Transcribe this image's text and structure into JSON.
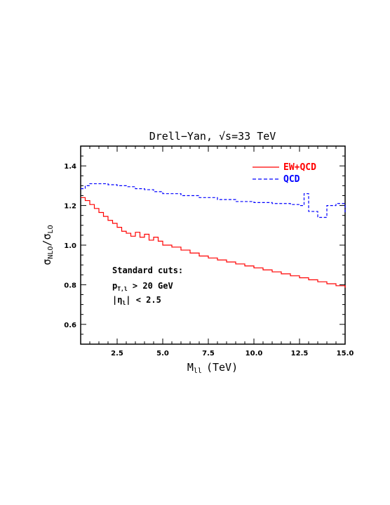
{
  "chart_data": {
    "type": "line",
    "title": "Drell−Yan, √s=33 TeV",
    "xlabel": "M",
    "xlabel_sub": "ll",
    "xlabel_unit": "(TeV)",
    "ylabel": "σ",
    "ylabel_sub1": "NLO",
    "ylabel_mid": "/σ",
    "ylabel_sub2": "LO",
    "xlim": [
      0.5,
      15.0
    ],
    "ylim": [
      0.5,
      1.5
    ],
    "xticks": [
      2.5,
      5.0,
      7.5,
      10.0,
      12.5,
      15.0
    ],
    "xtick_labels": [
      "2.5",
      "5.0",
      "7.5",
      "10.0",
      "12.5",
      "15.0"
    ],
    "yticks": [
      0.6,
      0.8,
      1.0,
      1.2,
      1.4
    ],
    "ytick_labels": [
      "0.6",
      "0.8",
      "1.0",
      "1.2",
      "1.4"
    ],
    "legend": {
      "position": "top-right",
      "entries": [
        "EW+QCD",
        "QCD"
      ]
    },
    "annotation": {
      "line1": "Standard cuts:",
      "line2_p": "p",
      "line2_sub": "T,l",
      "line2_rest": " > 20 GeV",
      "line3_open": "|η",
      "line3_sub": "l",
      "line3_rest": "| < 2.5"
    },
    "series": [
      {
        "name": "EW+QCD",
        "color": "#ff0000",
        "style": "solid",
        "x": [
          0.5,
          0.75,
          1.0,
          1.25,
          1.5,
          1.75,
          2.0,
          2.25,
          2.5,
          2.75,
          3.0,
          3.25,
          3.5,
          3.75,
          4.0,
          4.25,
          4.5,
          4.75,
          5.0,
          5.5,
          6.0,
          6.5,
          7.0,
          7.5,
          8.0,
          8.5,
          9.0,
          9.5,
          10.0,
          10.5,
          11.0,
          11.5,
          12.0,
          12.5,
          13.0,
          13.5,
          14.0,
          14.5,
          15.0
        ],
        "y": [
          1.24,
          1.225,
          1.205,
          1.185,
          1.165,
          1.145,
          1.125,
          1.11,
          1.09,
          1.07,
          1.06,
          1.045,
          1.065,
          1.04,
          1.055,
          1.025,
          1.04,
          1.02,
          1.0,
          0.99,
          0.975,
          0.96,
          0.945,
          0.935,
          0.925,
          0.915,
          0.905,
          0.895,
          0.885,
          0.875,
          0.865,
          0.855,
          0.845,
          0.835,
          0.825,
          0.815,
          0.805,
          0.795,
          0.785
        ]
      },
      {
        "name": "QCD",
        "color": "#0000ff",
        "style": "dashed",
        "x": [
          0.5,
          0.75,
          1.0,
          1.5,
          2.0,
          2.5,
          3.0,
          3.5,
          4.0,
          4.5,
          5.0,
          6.0,
          7.0,
          8.0,
          9.0,
          10.0,
          11.0,
          12.0,
          12.5,
          12.75,
          13.0,
          13.5,
          14.0,
          14.5,
          15.0
        ],
        "y": [
          1.285,
          1.3,
          1.31,
          1.31,
          1.305,
          1.3,
          1.295,
          1.285,
          1.28,
          1.27,
          1.26,
          1.25,
          1.24,
          1.23,
          1.22,
          1.215,
          1.21,
          1.205,
          1.2,
          1.26,
          1.17,
          1.14,
          1.2,
          1.21,
          1.16
        ]
      }
    ]
  }
}
